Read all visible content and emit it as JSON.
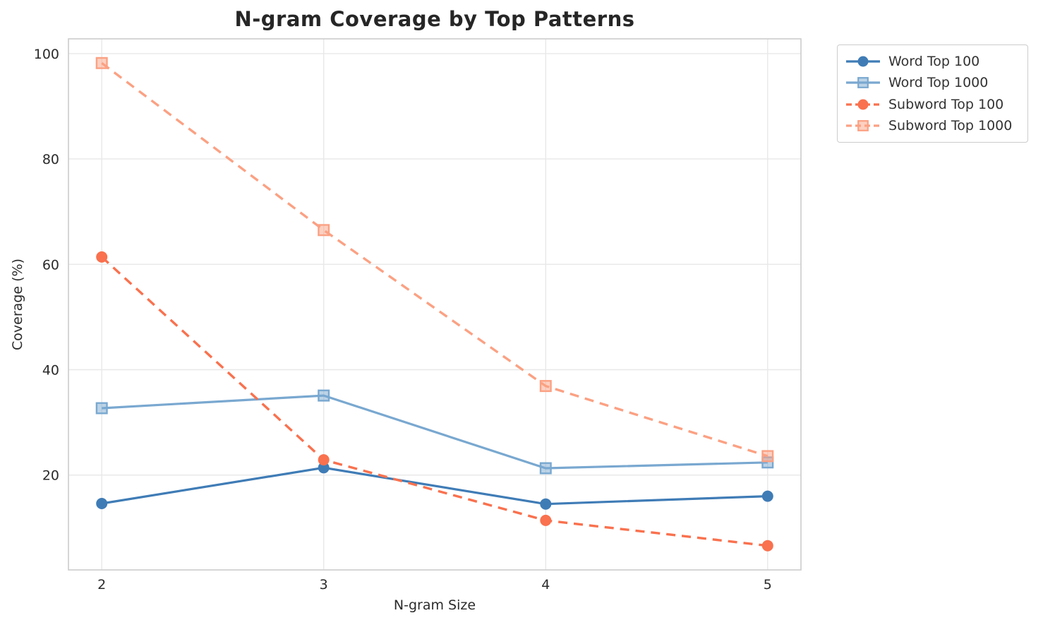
{
  "chart_data": {
    "type": "line",
    "title": "N-gram Coverage by Top Patterns",
    "xlabel": "N-gram Size",
    "ylabel": "Coverage (%)",
    "x": [
      2,
      3,
      4,
      5
    ],
    "xticks": [
      2,
      3,
      4,
      5
    ],
    "yticks": [
      20,
      40,
      60,
      80,
      100
    ],
    "xlim": [
      1.85,
      5.15
    ],
    "ylim": [
      2.0,
      102.8
    ],
    "grid": true,
    "background_color": "#ffffff",
    "grid_color": "#e8e8e8",
    "spine_color": "#cccccc",
    "text_color": "#2b2b2b",
    "legend_position": "outside-upper-right",
    "series": [
      {
        "name": "Word Top 100",
        "values": [
          14.6,
          21.4,
          14.5,
          16.0
        ],
        "color": "#3f7cb6",
        "marker": "circle",
        "line_style": "solid"
      },
      {
        "name": "Word Top 1000",
        "values": [
          32.7,
          35.1,
          21.3,
          22.4
        ],
        "color": "#79a8d0",
        "marker": "square",
        "line_style": "solid"
      },
      {
        "name": "Subword Top 100",
        "values": [
          61.4,
          22.9,
          11.4,
          6.6
        ],
        "color": "#f9714e",
        "marker": "circle",
        "line_style": "dashed"
      },
      {
        "name": "Subword Top 1000",
        "values": [
          98.2,
          66.5,
          36.9,
          23.6
        ],
        "color": "#fba183",
        "marker": "square",
        "line_style": "dashed"
      }
    ]
  }
}
